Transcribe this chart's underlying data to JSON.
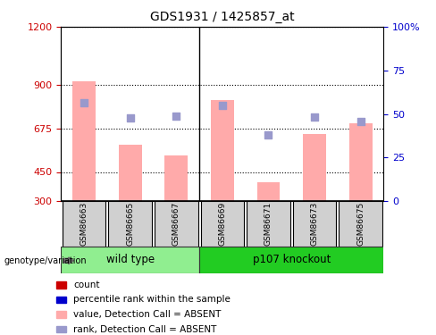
{
  "title": "GDS1931 / 1425857_at",
  "samples": [
    "GSM86663",
    "GSM86665",
    "GSM86667",
    "GSM86669",
    "GSM86671",
    "GSM86673",
    "GSM86675"
  ],
  "bar_values": [
    920,
    590,
    535,
    820,
    395,
    645,
    700
  ],
  "rank_values": [
    810,
    730,
    740,
    795,
    640,
    735,
    710
  ],
  "ylim_left": [
    300,
    1200
  ],
  "ylim_right": [
    0,
    100
  ],
  "yticks_left": [
    300,
    450,
    675,
    900,
    1200
  ],
  "yticks_right": [
    0,
    25,
    50,
    75,
    100
  ],
  "bar_color": "#ffaaaa",
  "rank_marker_color": "#9999cc",
  "left_tick_color": "#cc0000",
  "right_tick_color": "#0000cc",
  "wt_color": "#90ee90",
  "ko_color": "#22cc22",
  "legend_items": [
    {
      "label": "count",
      "color": "#cc0000"
    },
    {
      "label": "percentile rank within the sample",
      "color": "#0000cc"
    },
    {
      "label": "value, Detection Call = ABSENT",
      "color": "#ffaaaa"
    },
    {
      "label": "rank, Detection Call = ABSENT",
      "color": "#9999cc"
    }
  ]
}
